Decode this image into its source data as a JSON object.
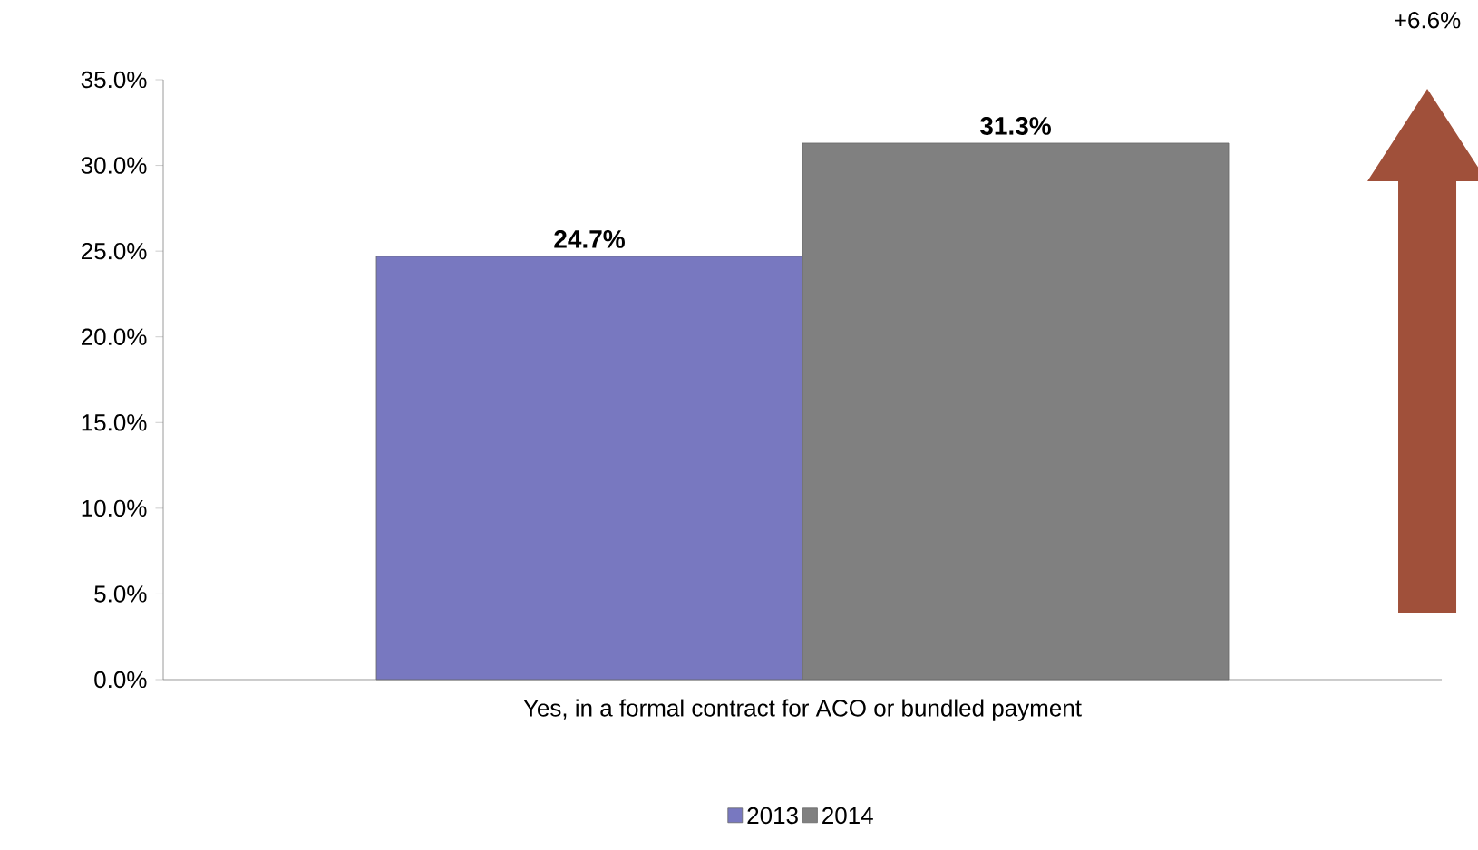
{
  "chart_data": {
    "type": "bar",
    "categories": [
      "Yes, in a formal contract for ACO or bundled payment"
    ],
    "series": [
      {
        "name": "2013",
        "color": "#7878c0",
        "values": [
          24.7
        ],
        "value_labels": [
          "24.7%"
        ]
      },
      {
        "name": "2014",
        "color": "#808080",
        "values": [
          31.3
        ],
        "value_labels": [
          "31.3%"
        ]
      }
    ],
    "ylim": [
      0,
      35
    ],
    "yticks": [
      {
        "value": 0,
        "label": "0.0%"
      },
      {
        "value": 5,
        "label": "5.0%"
      },
      {
        "value": 10,
        "label": "10.0%"
      },
      {
        "value": 15,
        "label": "15.0%"
      },
      {
        "value": 20,
        "label": "20.0%"
      },
      {
        "value": 25,
        "label": "25.0%"
      },
      {
        "value": 30,
        "label": "30.0%"
      },
      {
        "value": 35,
        "label": "35.0%"
      }
    ],
    "legend": "bottom",
    "grid": false,
    "annotations": [
      "+6.6%"
    ]
  }
}
